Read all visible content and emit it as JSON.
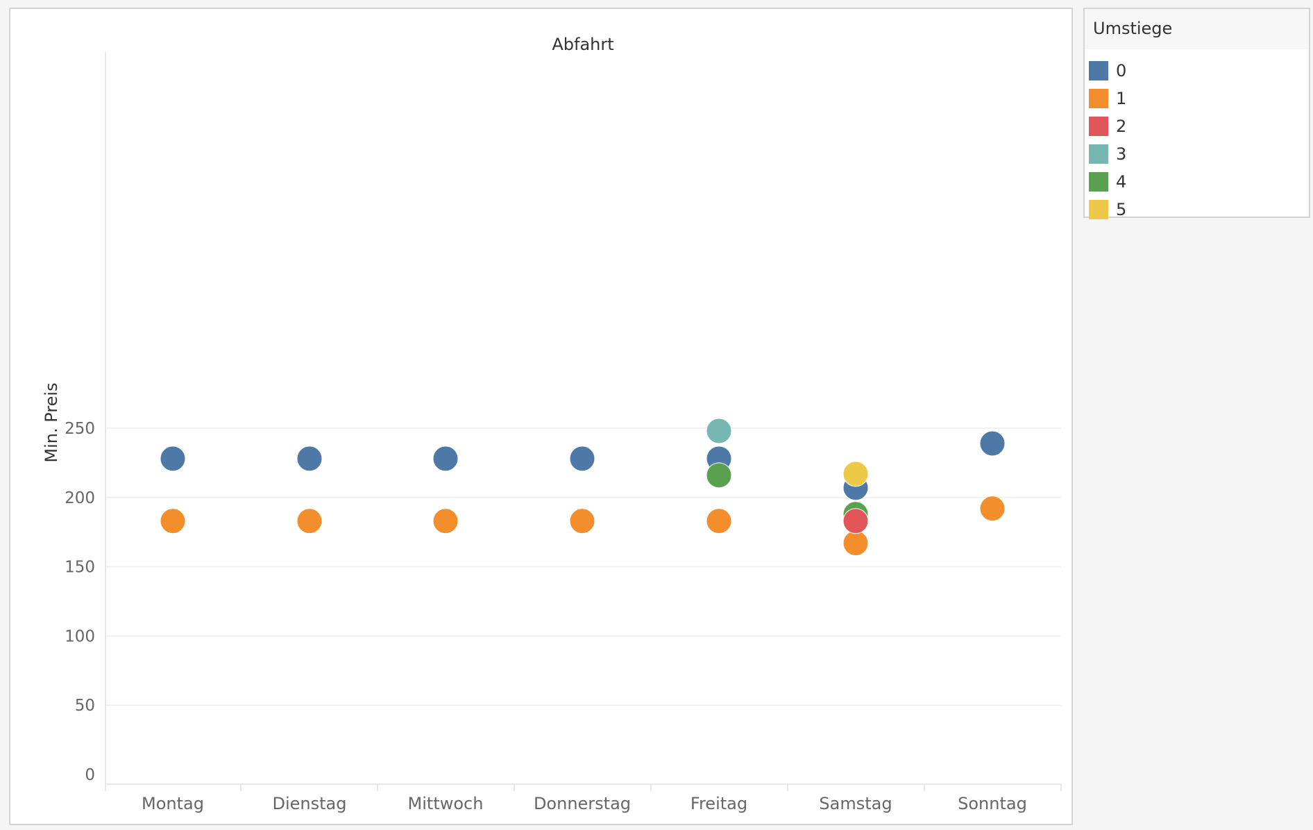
{
  "chart_data": {
    "type": "scatter",
    "title": "Abfahrt",
    "ylabel": "Min. Preis",
    "xlabel": "",
    "categories": [
      "Montag",
      "Dienstag",
      "Mittwoch",
      "Donnerstag",
      "Freitag",
      "Samstag",
      "Sonntag"
    ],
    "ylim": [
      0,
      260
    ],
    "yticks": [
      0,
      50,
      100,
      150,
      200,
      250
    ],
    "grid": true,
    "legend_position": "top-right",
    "series": [
      {
        "name": "0",
        "color": "#4e79a7",
        "points": [
          {
            "x": "Montag",
            "y": 228
          },
          {
            "x": "Dienstag",
            "y": 228
          },
          {
            "x": "Mittwoch",
            "y": 228
          },
          {
            "x": "Donnerstag",
            "y": 228
          },
          {
            "x": "Freitag",
            "y": 228
          },
          {
            "x": "Samstag",
            "y": 207
          },
          {
            "x": "Sonntag",
            "y": 239
          }
        ]
      },
      {
        "name": "1",
        "color": "#f28e2b",
        "points": [
          {
            "x": "Montag",
            "y": 183
          },
          {
            "x": "Dienstag",
            "y": 183
          },
          {
            "x": "Mittwoch",
            "y": 183
          },
          {
            "x": "Donnerstag",
            "y": 183
          },
          {
            "x": "Freitag",
            "y": 183
          },
          {
            "x": "Samstag",
            "y": 167
          },
          {
            "x": "Sonntag",
            "y": 192
          }
        ]
      },
      {
        "name": "2",
        "color": "#e15759",
        "points": [
          {
            "x": "Samstag",
            "y": 183
          }
        ]
      },
      {
        "name": "3",
        "color": "#76b7b2",
        "points": [
          {
            "x": "Freitag",
            "y": 248
          }
        ]
      },
      {
        "name": "4",
        "color": "#59a14f",
        "points": [
          {
            "x": "Freitag",
            "y": 216
          },
          {
            "x": "Samstag",
            "y": 188
          }
        ]
      },
      {
        "name": "5",
        "color": "#edc948",
        "points": [
          {
            "x": "Samstag",
            "y": 217
          }
        ]
      }
    ]
  },
  "legend": {
    "title": "Umstiege",
    "items": [
      {
        "label": "0",
        "color": "#4e79a7"
      },
      {
        "label": "1",
        "color": "#f28e2b"
      },
      {
        "label": "2",
        "color": "#e15759"
      },
      {
        "label": "3",
        "color": "#76b7b2"
      },
      {
        "label": "4",
        "color": "#59a14f"
      },
      {
        "label": "5",
        "color": "#edc948"
      }
    ]
  }
}
